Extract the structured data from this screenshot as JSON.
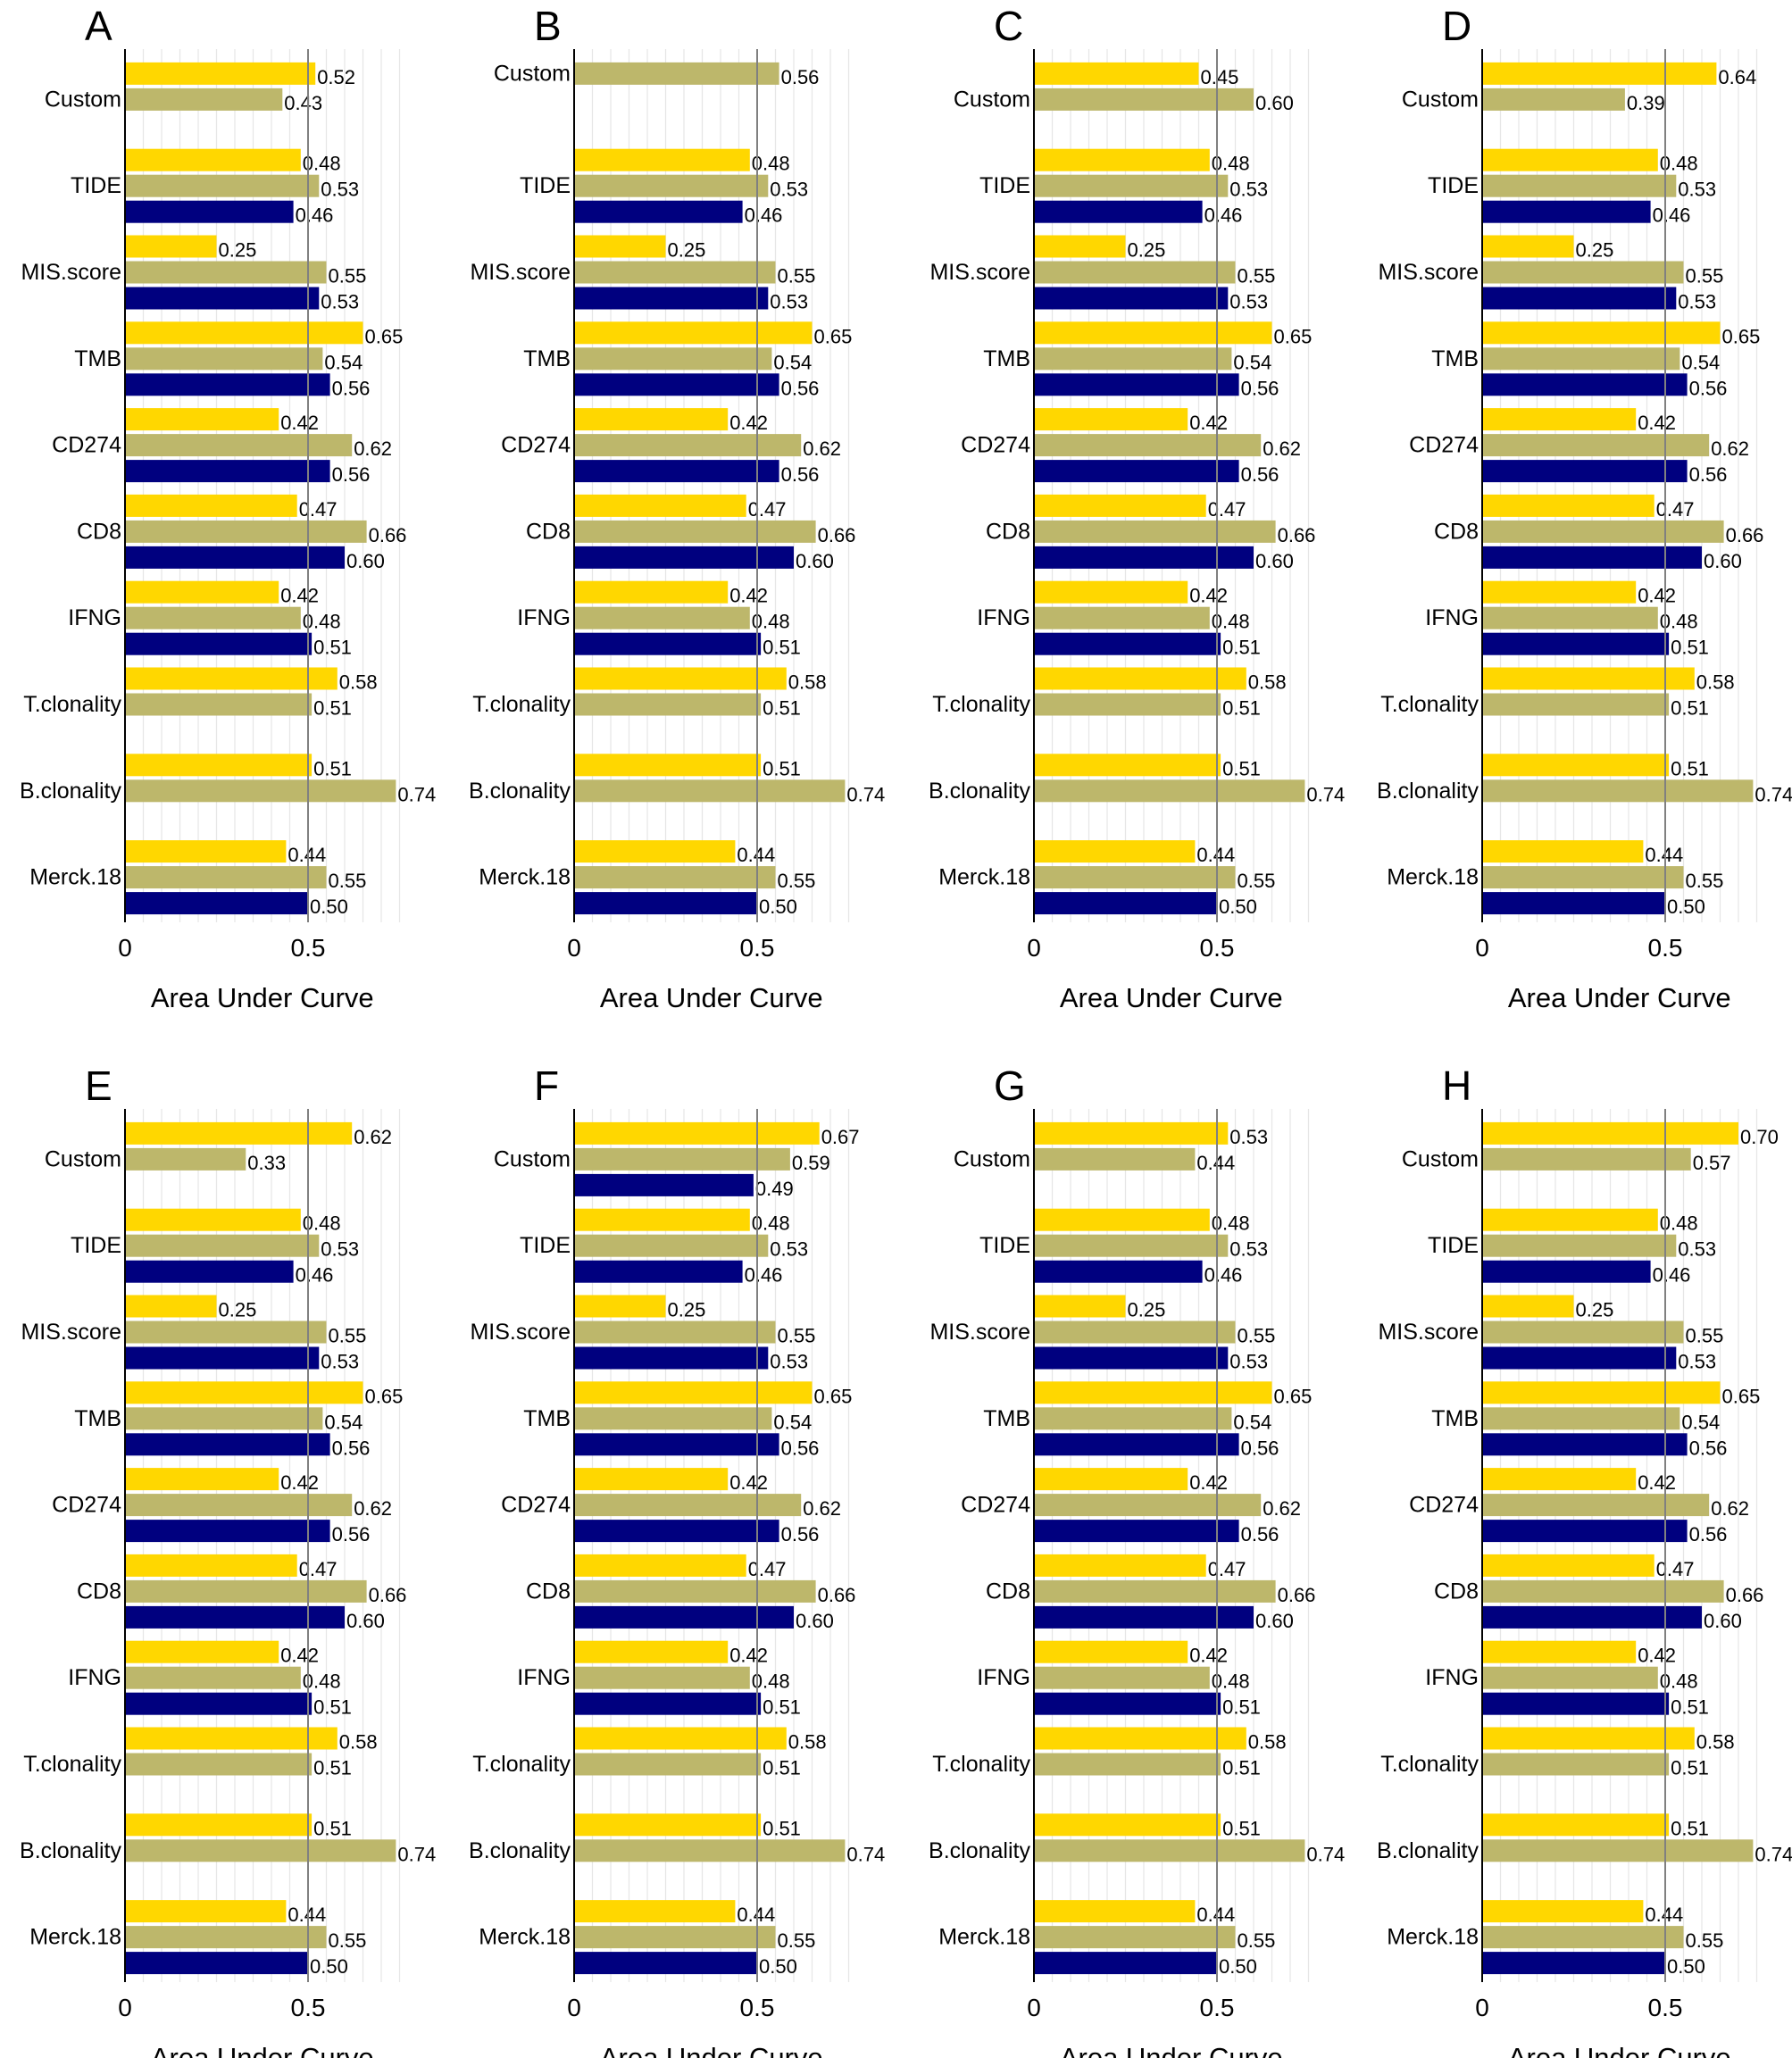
{
  "colors": {
    "series_1": "#FFD700",
    "series_2": "#BDB76B",
    "series_3": "#00007F",
    "grid": "#E6E6E6",
    "refline": "#808080"
  },
  "chart_data": [
    {
      "panel": "A",
      "type": "bar",
      "orientation": "horizontal",
      "categories": [
        "Custom",
        "TIDE",
        "MIS.score",
        "TMB",
        "CD274",
        "CD8",
        "IFNG",
        "T.clonality",
        "B.clonality",
        "Merck.18"
      ],
      "series": [
        {
          "values": [
            0.52,
            0.48,
            0.25,
            0.65,
            0.42,
            0.47,
            0.42,
            0.58,
            0.51,
            0.44
          ]
        },
        {
          "values": [
            0.43,
            0.53,
            0.55,
            0.54,
            0.62,
            0.66,
            0.48,
            0.51,
            0.74,
            0.55
          ]
        },
        {
          "values": [
            null,
            0.46,
            0.53,
            0.56,
            0.56,
            0.6,
            0.51,
            null,
            null,
            0.5
          ]
        }
      ],
      "xlabel": "Area Under Curve",
      "xticks": [
        "0",
        "0.5"
      ],
      "xlim": [
        0,
        0.75
      ],
      "reference_line": 0.5,
      "grid": true
    },
    {
      "panel": "B",
      "type": "bar",
      "orientation": "horizontal",
      "categories": [
        "Custom",
        "TIDE",
        "MIS.score",
        "TMB",
        "CD274",
        "CD8",
        "IFNG",
        "T.clonality",
        "B.clonality",
        "Merck.18"
      ],
      "series": [
        {
          "values": [
            null,
            0.48,
            0.25,
            0.65,
            0.42,
            0.47,
            0.42,
            0.58,
            0.51,
            0.44
          ]
        },
        {
          "values": [
            0.56,
            0.53,
            0.55,
            0.54,
            0.62,
            0.66,
            0.48,
            0.51,
            0.74,
            0.55
          ]
        },
        {
          "values": [
            null,
            0.46,
            0.53,
            0.56,
            0.56,
            0.6,
            0.51,
            null,
            null,
            0.5
          ]
        }
      ],
      "xlabel": "Area Under Curve",
      "xticks": [
        "0",
        "0.5"
      ],
      "xlim": [
        0,
        0.75
      ],
      "reference_line": 0.5,
      "grid": true
    },
    {
      "panel": "C",
      "type": "bar",
      "orientation": "horizontal",
      "categories": [
        "Custom",
        "TIDE",
        "MIS.score",
        "TMB",
        "CD274",
        "CD8",
        "IFNG",
        "T.clonality",
        "B.clonality",
        "Merck.18"
      ],
      "series": [
        {
          "values": [
            0.45,
            0.48,
            0.25,
            0.65,
            0.42,
            0.47,
            0.42,
            0.58,
            0.51,
            0.44
          ]
        },
        {
          "values": [
            0.6,
            0.53,
            0.55,
            0.54,
            0.62,
            0.66,
            0.48,
            0.51,
            0.74,
            0.55
          ]
        },
        {
          "values": [
            null,
            0.46,
            0.53,
            0.56,
            0.56,
            0.6,
            0.51,
            null,
            null,
            0.5
          ]
        }
      ],
      "xlabel": "Area Under Curve",
      "xticks": [
        "0",
        "0.5"
      ],
      "xlim": [
        0,
        0.75
      ],
      "reference_line": 0.5,
      "grid": true
    },
    {
      "panel": "D",
      "type": "bar",
      "orientation": "horizontal",
      "categories": [
        "Custom",
        "TIDE",
        "MIS.score",
        "TMB",
        "CD274",
        "CD8",
        "IFNG",
        "T.clonality",
        "B.clonality",
        "Merck.18"
      ],
      "series": [
        {
          "values": [
            0.64,
            0.48,
            0.25,
            0.65,
            0.42,
            0.47,
            0.42,
            0.58,
            0.51,
            0.44
          ]
        },
        {
          "values": [
            0.39,
            0.53,
            0.55,
            0.54,
            0.62,
            0.66,
            0.48,
            0.51,
            0.74,
            0.55
          ]
        },
        {
          "values": [
            null,
            0.46,
            0.53,
            0.56,
            0.56,
            0.6,
            0.51,
            null,
            null,
            0.5
          ]
        }
      ],
      "xlabel": "Area Under Curve",
      "xticks": [
        "0",
        "0.5"
      ],
      "xlim": [
        0,
        0.75
      ],
      "reference_line": 0.5,
      "grid": true
    },
    {
      "panel": "E",
      "type": "bar",
      "orientation": "horizontal",
      "categories": [
        "Custom",
        "TIDE",
        "MIS.score",
        "TMB",
        "CD274",
        "CD8",
        "IFNG",
        "T.clonality",
        "B.clonality",
        "Merck.18"
      ],
      "series": [
        {
          "values": [
            0.62,
            0.48,
            0.25,
            0.65,
            0.42,
            0.47,
            0.42,
            0.58,
            0.51,
            0.44
          ]
        },
        {
          "values": [
            0.33,
            0.53,
            0.55,
            0.54,
            0.62,
            0.66,
            0.48,
            0.51,
            0.74,
            0.55
          ]
        },
        {
          "values": [
            null,
            0.46,
            0.53,
            0.56,
            0.56,
            0.6,
            0.51,
            null,
            null,
            0.5
          ]
        }
      ],
      "xlabel": "Area Under Curve",
      "xticks": [
        "0",
        "0.5"
      ],
      "xlim": [
        0,
        0.75
      ],
      "reference_line": 0.5,
      "grid": true
    },
    {
      "panel": "F",
      "type": "bar",
      "orientation": "horizontal",
      "categories": [
        "Custom",
        "TIDE",
        "MIS.score",
        "TMB",
        "CD274",
        "CD8",
        "IFNG",
        "T.clonality",
        "B.clonality",
        "Merck.18"
      ],
      "series": [
        {
          "values": [
            0.67,
            0.48,
            0.25,
            0.65,
            0.42,
            0.47,
            0.42,
            0.58,
            0.51,
            0.44
          ]
        },
        {
          "values": [
            0.59,
            0.53,
            0.55,
            0.54,
            0.62,
            0.66,
            0.48,
            0.51,
            0.74,
            0.55
          ]
        },
        {
          "values": [
            0.49,
            0.46,
            0.53,
            0.56,
            0.56,
            0.6,
            0.51,
            null,
            null,
            0.5
          ]
        }
      ],
      "xlabel": "Area Under Curve",
      "xticks": [
        "0",
        "0.5"
      ],
      "xlim": [
        0,
        0.75
      ],
      "reference_line": 0.5,
      "grid": true
    },
    {
      "panel": "G",
      "type": "bar",
      "orientation": "horizontal",
      "categories": [
        "Custom",
        "TIDE",
        "MIS.score",
        "TMB",
        "CD274",
        "CD8",
        "IFNG",
        "T.clonality",
        "B.clonality",
        "Merck.18"
      ],
      "series": [
        {
          "values": [
            0.53,
            0.48,
            0.25,
            0.65,
            0.42,
            0.47,
            0.42,
            0.58,
            0.51,
            0.44
          ]
        },
        {
          "values": [
            0.44,
            0.53,
            0.55,
            0.54,
            0.62,
            0.66,
            0.48,
            0.51,
            0.74,
            0.55
          ]
        },
        {
          "values": [
            null,
            0.46,
            0.53,
            0.56,
            0.56,
            0.6,
            0.51,
            null,
            null,
            0.5
          ]
        }
      ],
      "xlabel": "Area Under Curve",
      "xticks": [
        "0",
        "0.5"
      ],
      "xlim": [
        0,
        0.75
      ],
      "reference_line": 0.5,
      "grid": true
    },
    {
      "panel": "H",
      "type": "bar",
      "orientation": "horizontal",
      "categories": [
        "Custom",
        "TIDE",
        "MIS.score",
        "TMB",
        "CD274",
        "CD8",
        "IFNG",
        "T.clonality",
        "B.clonality",
        "Merck.18"
      ],
      "series": [
        {
          "values": [
            0.7,
            0.48,
            0.25,
            0.65,
            0.42,
            0.47,
            0.42,
            0.58,
            0.51,
            0.44
          ]
        },
        {
          "values": [
            0.57,
            0.53,
            0.55,
            0.54,
            0.62,
            0.66,
            0.48,
            0.51,
            0.74,
            0.55
          ]
        },
        {
          "values": [
            null,
            0.46,
            0.53,
            0.56,
            0.56,
            0.6,
            0.51,
            null,
            null,
            0.5
          ]
        }
      ],
      "xlabel": "Area Under Curve",
      "xticks": [
        "0",
        "0.5"
      ],
      "xlim": [
        0,
        0.75
      ],
      "reference_line": 0.5,
      "grid": true
    }
  ]
}
